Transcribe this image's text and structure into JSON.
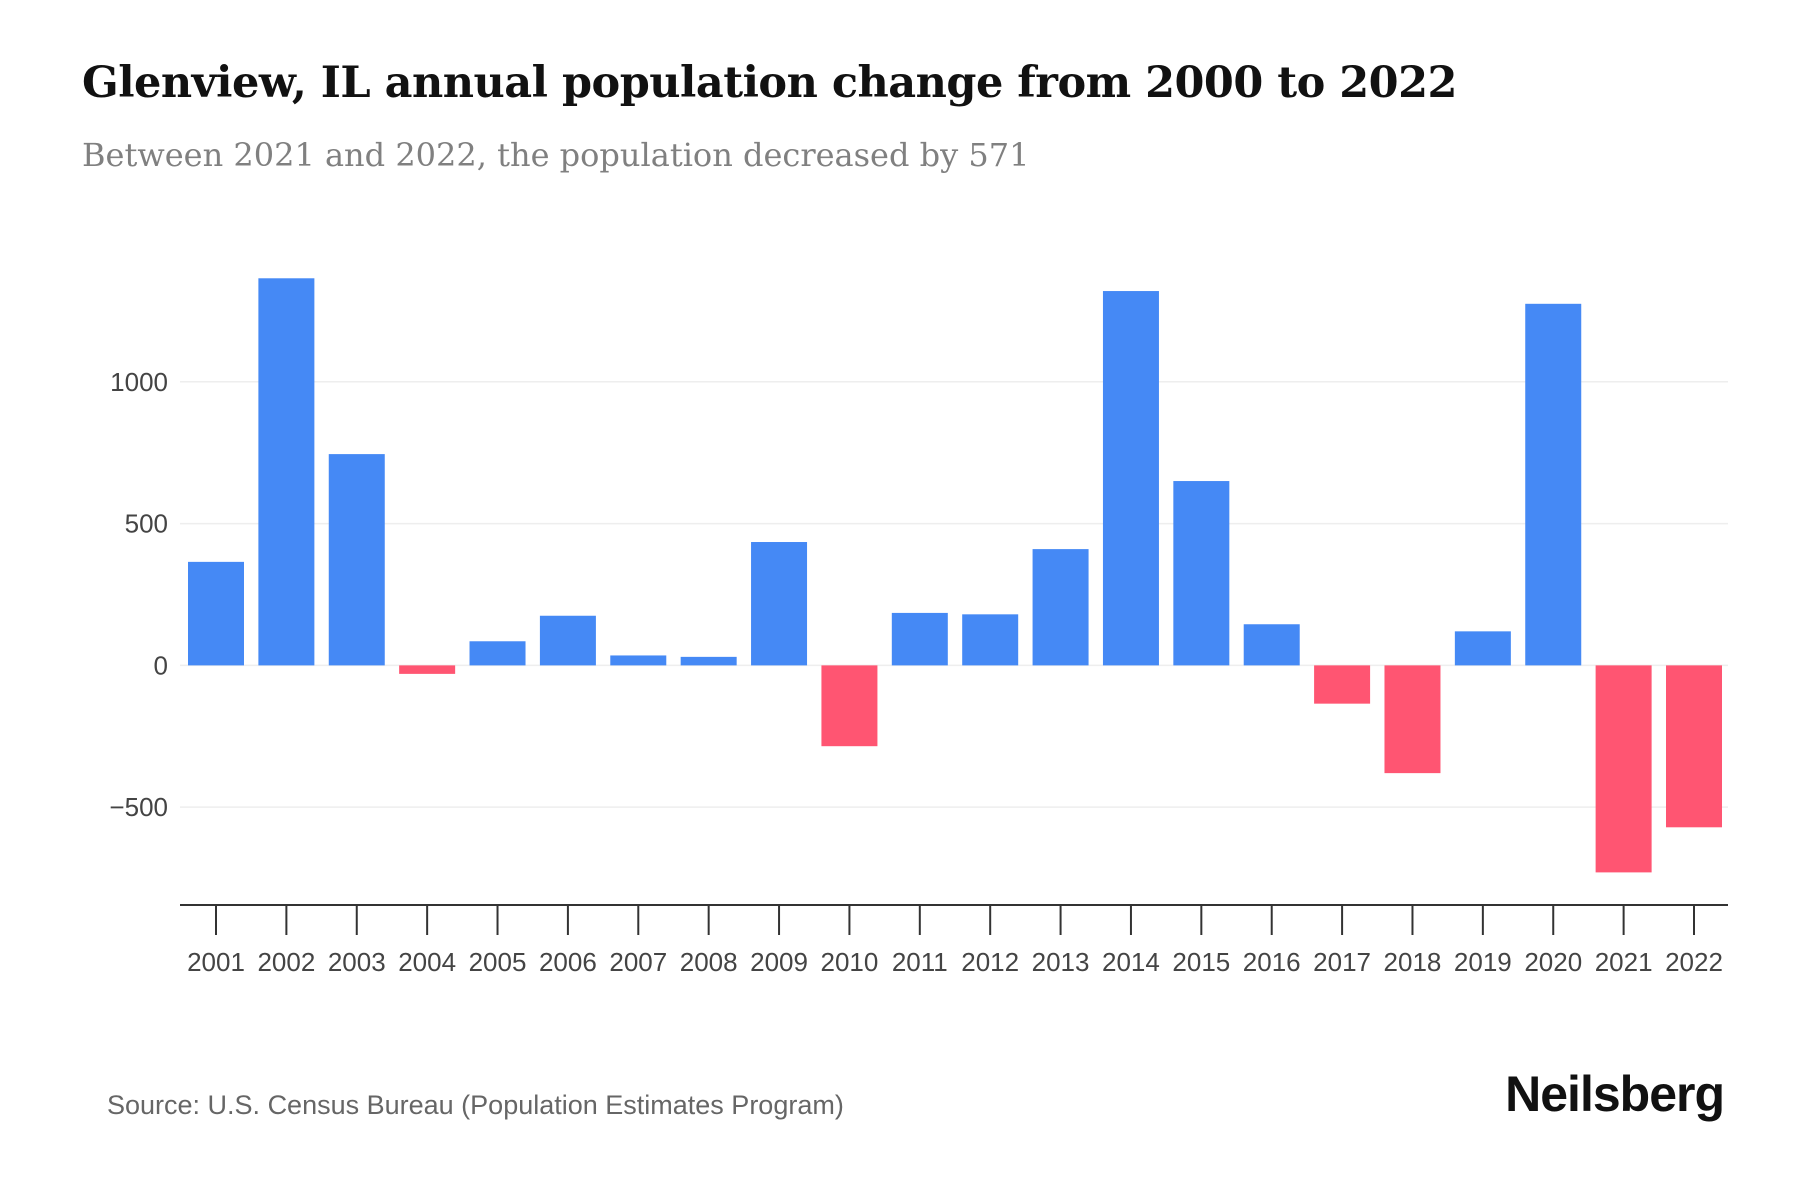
{
  "header": {
    "title": "Glenview, IL annual population change from 2000 to 2022",
    "subtitle": "Between 2021 and 2022, the population decreased by 571"
  },
  "footer": {
    "source": "Source: U.S. Census Bureau (Population Estimates Program)",
    "brand": "Neilsberg"
  },
  "colors": {
    "positive": "#4589F5",
    "negative": "#FF5572",
    "gridline": "#EEEEEE",
    "axis": "#333333"
  },
  "chart_data": {
    "type": "bar",
    "title": "Glenview, IL annual population change from 2000 to 2022",
    "subtitle": "Between 2021 and 2022, the population decreased by 571",
    "xlabel": "",
    "ylabel": "",
    "categories": [
      "2001",
      "2002",
      "2003",
      "2004",
      "2005",
      "2006",
      "2007",
      "2008",
      "2009",
      "2010",
      "2011",
      "2012",
      "2013",
      "2014",
      "2015",
      "2016",
      "2017",
      "2018",
      "2019",
      "2020",
      "2021",
      "2022"
    ],
    "values": [
      365,
      1365,
      745,
      -30,
      85,
      175,
      35,
      30,
      435,
      -285,
      185,
      180,
      410,
      1320,
      650,
      145,
      -135,
      -380,
      120,
      1275,
      -730,
      -571
    ],
    "yticks": [
      -500,
      0,
      500,
      1000
    ],
    "ytick_labels": [
      "−500",
      "0",
      "500",
      "1000"
    ],
    "ylim": [
      -845,
      1500
    ],
    "grid": true,
    "legend": "none"
  }
}
